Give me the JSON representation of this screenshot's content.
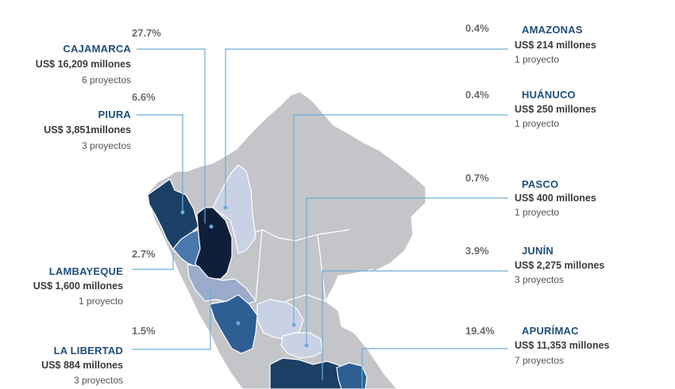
{
  "colors": {
    "base_map": "#c3c5c9",
    "border": "#ffffff",
    "leader": "#6aaed6",
    "dot": "#6aaed6",
    "name_text": "#1f4e79",
    "pct_text": "#6b6b6b",
    "darkest": "#0f1f3a",
    "dark": "#1c3f66",
    "medium": "#2e5e92",
    "mediumlight": "#4a78ab",
    "light": "#9aabcb",
    "verylight": "#c9d2e4"
  },
  "regions": [
    {
      "id": "cajamarca",
      "pct": "27.7%",
      "name": "CAJAMARCA",
      "amount": "US$ 16,209 millones",
      "projects": "6 proyectos",
      "shade": "darkest"
    },
    {
      "id": "piura",
      "pct": "6.6%",
      "name": "PIURA",
      "amount": "US$ 3,851millones",
      "projects": "3 proyectos",
      "shade": "dark"
    },
    {
      "id": "lambayeque",
      "pct": "2.7%",
      "name": "LAMBAYEQUE",
      "amount": "US$ 1,600 millones",
      "projects": "1 proyecto",
      "shade": "mediumlight"
    },
    {
      "id": "lalibertad",
      "pct": "1.5%",
      "name": "LA LIBERTAD",
      "amount": "US$ 884 millones",
      "projects": "3 proyectos",
      "shade": "light"
    },
    {
      "id": "amazonas",
      "pct": "0.4%",
      "name": "AMAZONAS",
      "amount": "US$ 214 millones",
      "projects": "1 proyecto",
      "shade": "verylight"
    },
    {
      "id": "huanuco",
      "pct": "0.4%",
      "name": "HUÁNUCO",
      "amount": "US$ 250 millones",
      "projects": "1 proyecto",
      "shade": "verylight"
    },
    {
      "id": "pasco",
      "pct": "0.7%",
      "name": "PASCO",
      "amount": "US$ 400 millones",
      "projects": "1 proyecto",
      "shade": "light"
    },
    {
      "id": "junin",
      "pct": "3.9%",
      "name": "JUNÍN",
      "amount": "US$ 2,275 millones",
      "projects": "3 proyectos",
      "shade": "mediumlight"
    },
    {
      "id": "apurimac",
      "pct": "19.4%",
      "name": "APURÍMAC",
      "amount": "US$ 11,353 millones",
      "projects": "7 proyectos",
      "shade": "dark"
    }
  ]
}
